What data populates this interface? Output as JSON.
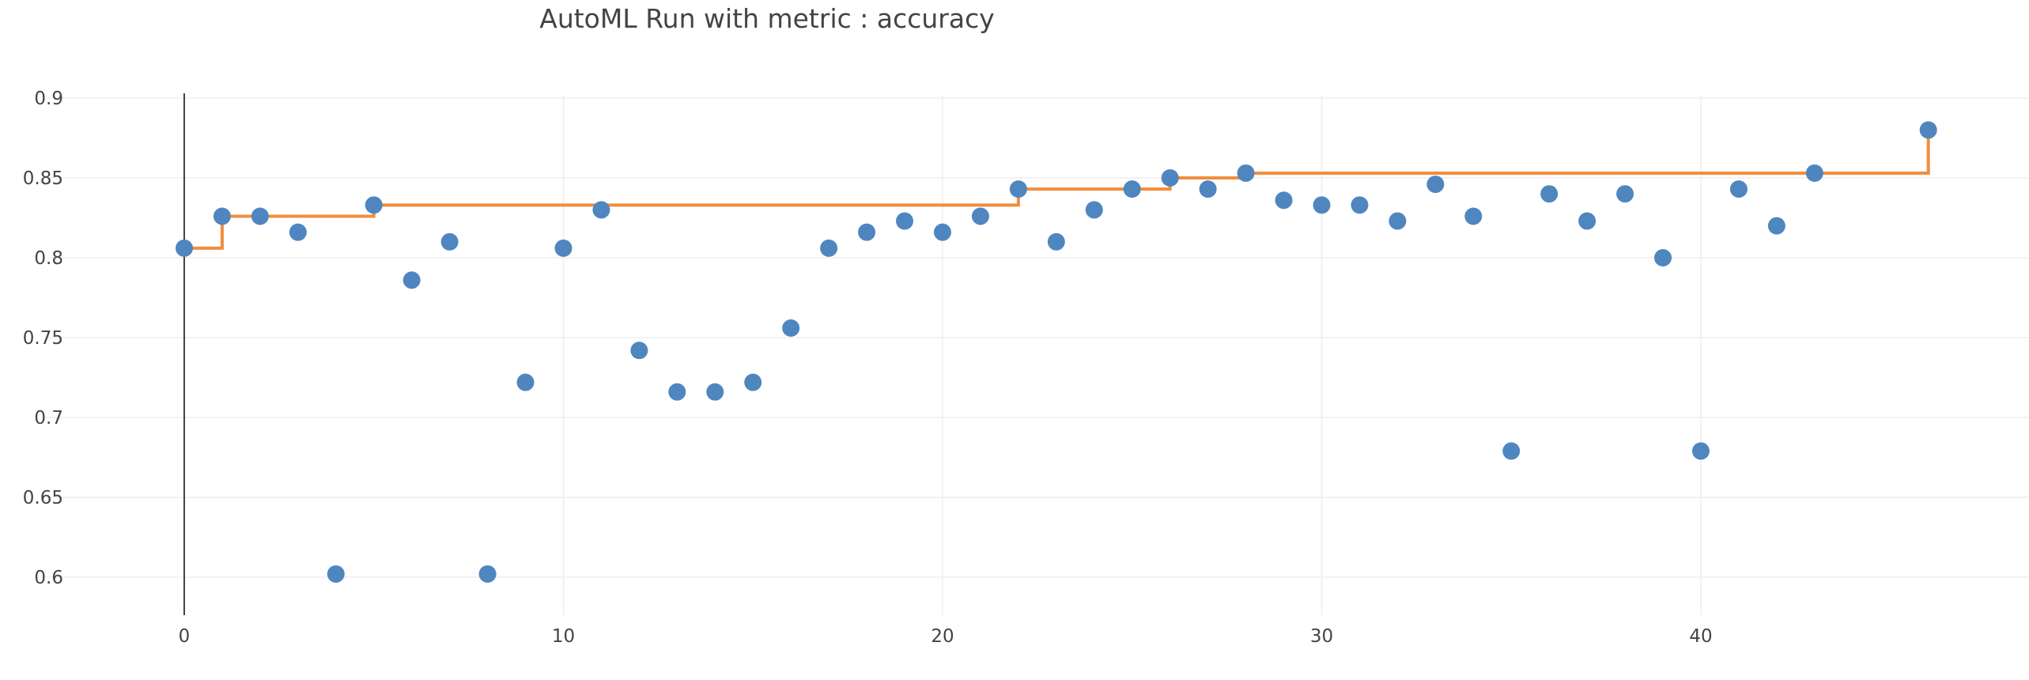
{
  "chart_data": {
    "type": "scatter",
    "title": "AutoML Run with metric : accuracy",
    "xlabel": "",
    "ylabel": "",
    "xlim": [
      -1.5,
      48
    ],
    "ylim": [
      0.58,
      0.915
    ],
    "x_ticks": [
      0,
      10,
      20,
      30,
      40
    ],
    "y_ticks": [
      0.6,
      0.65,
      0.7,
      0.75,
      0.8,
      0.85,
      0.9
    ],
    "y_tick_labels": [
      "0.6",
      "0.65",
      "0.7",
      "0.75",
      "0.8",
      "0.85",
      "0.9"
    ],
    "grid": true,
    "legend": "none",
    "colors": {
      "points": "#4f86c0",
      "best_line": "#f28d3c"
    },
    "series": [
      {
        "mode": "markers",
        "x": [
          0,
          1,
          2,
          3,
          4,
          5,
          6,
          7,
          8,
          9,
          10,
          11,
          12,
          13,
          14,
          15,
          16,
          17,
          18,
          19,
          20,
          21,
          22,
          23,
          24,
          25,
          26,
          27,
          28,
          29,
          30,
          31,
          32,
          33,
          34,
          35,
          36,
          37,
          38,
          39,
          40,
          41,
          42,
          43,
          46
        ],
        "y": [
          0.806,
          0.826,
          0.826,
          0.816,
          0.602,
          0.833,
          0.786,
          0.81,
          0.602,
          0.722,
          0.806,
          0.83,
          0.742,
          0.716,
          0.716,
          0.722,
          0.756,
          0.806,
          0.816,
          0.823,
          0.816,
          0.826,
          0.843,
          0.81,
          0.83,
          0.843,
          0.85,
          0.843,
          0.853,
          0.836,
          0.833,
          0.833,
          0.823,
          0.846,
          0.826,
          0.679,
          0.84,
          0.823,
          0.84,
          0.8,
          0.679,
          0.843,
          0.82,
          0.853,
          0.88
        ]
      },
      {
        "mode": "step",
        "x": [
          0,
          1,
          5,
          22,
          26,
          28,
          46
        ],
        "y": [
          0.806,
          0.826,
          0.833,
          0.843,
          0.85,
          0.853,
          0.88
        ]
      }
    ]
  }
}
